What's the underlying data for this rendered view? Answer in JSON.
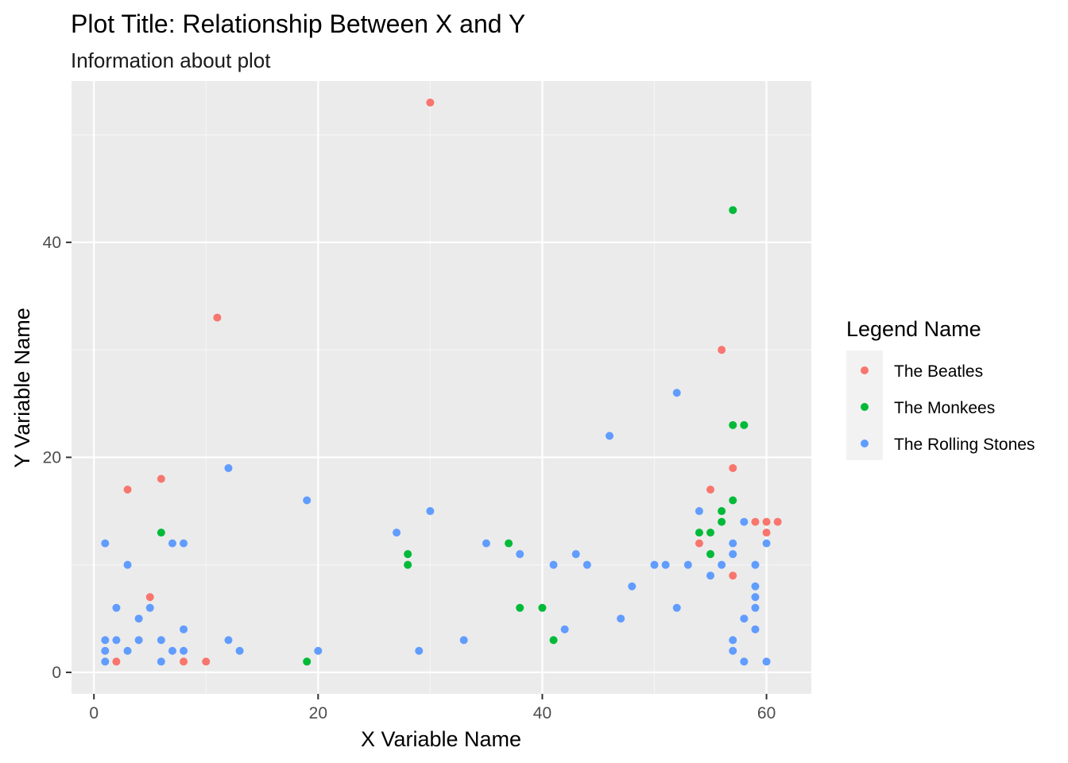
{
  "chart_data": {
    "type": "scatter",
    "title": "Plot Title: Relationship Between X and Y",
    "subtitle": "Information about plot",
    "xlabel": "X Variable Name",
    "ylabel": "Y Variable Name",
    "xlim": [
      -2,
      64
    ],
    "ylim": [
      -2,
      55
    ],
    "xticks": [
      0,
      20,
      40,
      60
    ],
    "yticks": [
      0,
      20,
      40
    ],
    "x_minor": [
      10,
      30,
      50
    ],
    "y_minor": [
      10,
      30,
      50
    ],
    "grid": true,
    "background": "#ebebeb",
    "legend": {
      "title": "Legend Name",
      "position": "right"
    },
    "series": [
      {
        "name": "The Beatles",
        "color": "#f8766d",
        "points": [
          [
            2,
            1
          ],
          [
            3,
            17
          ],
          [
            5,
            7
          ],
          [
            6,
            18
          ],
          [
            8,
            1
          ],
          [
            10,
            1
          ],
          [
            11,
            33
          ],
          [
            30,
            53
          ],
          [
            54,
            12
          ],
          [
            55,
            17
          ],
          [
            56,
            30
          ],
          [
            57,
            19
          ],
          [
            57,
            9
          ],
          [
            59,
            14
          ],
          [
            60,
            14
          ],
          [
            60,
            13
          ],
          [
            61,
            14
          ]
        ]
      },
      {
        "name": "The Monkees",
        "color": "#00ba38",
        "points": [
          [
            6,
            13
          ],
          [
            19,
            1
          ],
          [
            28,
            11
          ],
          [
            28,
            10
          ],
          [
            37,
            12
          ],
          [
            38,
            6
          ],
          [
            40,
            6
          ],
          [
            41,
            3
          ],
          [
            54,
            13
          ],
          [
            55,
            13
          ],
          [
            55,
            11
          ],
          [
            56,
            15
          ],
          [
            56,
            14
          ],
          [
            57,
            43
          ],
          [
            57,
            23
          ],
          [
            57,
            16
          ],
          [
            58,
            23
          ]
        ]
      },
      {
        "name": "The Rolling Stones",
        "color": "#619cff",
        "points": [
          [
            1,
            12
          ],
          [
            1,
            3
          ],
          [
            1,
            2
          ],
          [
            1,
            1
          ],
          [
            2,
            6
          ],
          [
            2,
            3
          ],
          [
            3,
            10
          ],
          [
            3,
            2
          ],
          [
            4,
            5
          ],
          [
            4,
            3
          ],
          [
            5,
            6
          ],
          [
            6,
            3
          ],
          [
            6,
            1
          ],
          [
            7,
            12
          ],
          [
            7,
            2
          ],
          [
            8,
            12
          ],
          [
            8,
            4
          ],
          [
            8,
            2
          ],
          [
            12,
            19
          ],
          [
            12,
            3
          ],
          [
            13,
            2
          ],
          [
            19,
            16
          ],
          [
            20,
            2
          ],
          [
            27,
            13
          ],
          [
            29,
            2
          ],
          [
            30,
            15
          ],
          [
            33,
            3
          ],
          [
            35,
            12
          ],
          [
            38,
            11
          ],
          [
            41,
            10
          ],
          [
            42,
            4
          ],
          [
            43,
            11
          ],
          [
            44,
            10
          ],
          [
            46,
            22
          ],
          [
            47,
            5
          ],
          [
            48,
            8
          ],
          [
            50,
            10
          ],
          [
            51,
            10
          ],
          [
            52,
            26
          ],
          [
            52,
            6
          ],
          [
            53,
            10
          ],
          [
            54,
            15
          ],
          [
            55,
            9
          ],
          [
            56,
            10
          ],
          [
            57,
            12
          ],
          [
            57,
            11
          ],
          [
            57,
            3
          ],
          [
            57,
            2
          ],
          [
            58,
            14
          ],
          [
            58,
            5
          ],
          [
            58,
            1
          ],
          [
            59,
            10
          ],
          [
            59,
            8
          ],
          [
            59,
            7
          ],
          [
            59,
            6
          ],
          [
            59,
            4
          ],
          [
            60,
            12
          ],
          [
            60,
            1
          ]
        ]
      }
    ]
  }
}
